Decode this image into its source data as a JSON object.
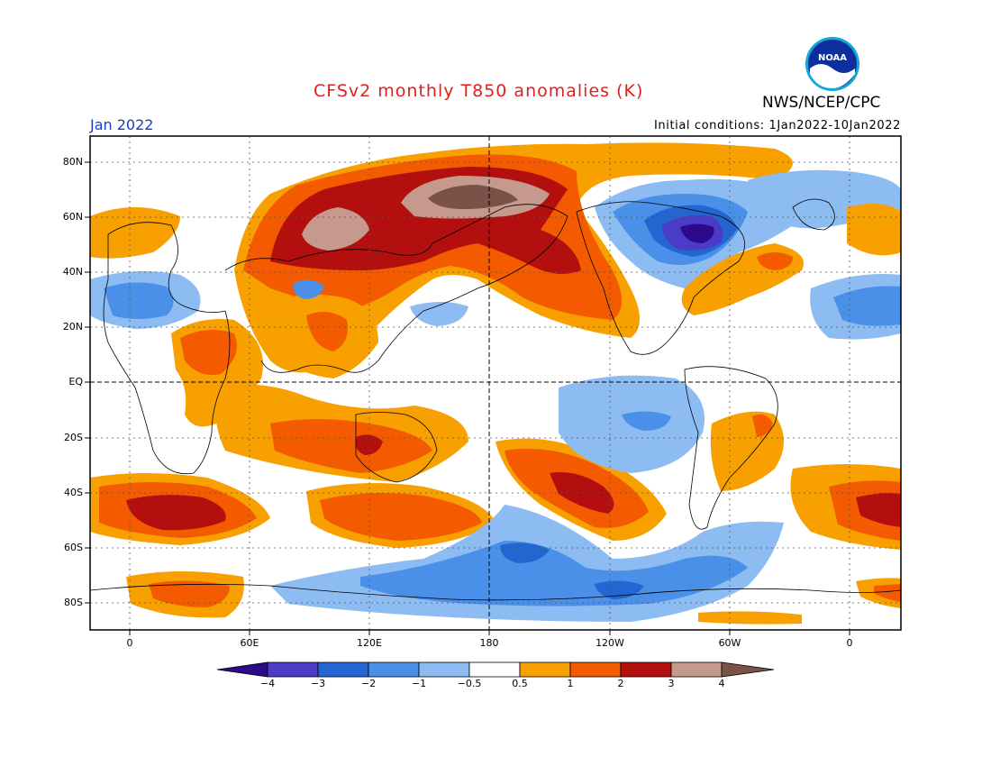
{
  "header": {
    "title": "CFSv2 monthly T850 anomalies (K)",
    "org": "NWS/NCEP/CPC",
    "month": "Jan 2022",
    "initial_conditions": "Initial conditions: 1Jan2022-10Jan2022",
    "logo_text": "NOAA"
  },
  "axes": {
    "lat_labels": [
      "80N",
      "60N",
      "40N",
      "20N",
      "EQ",
      "20S",
      "40S",
      "60S",
      "80S"
    ],
    "lon_labels": [
      "0",
      "60E",
      "120E",
      "180",
      "120W",
      "60W",
      "0"
    ]
  },
  "legend": {
    "labels": [
      "−4",
      "−3",
      "−2",
      "−1",
      "−0.5",
      "0.5",
      "1",
      "2",
      "3",
      "4"
    ],
    "colors": [
      "#2b0a8c",
      "#4b3cc8",
      "#2366d1",
      "#4a90e8",
      "#8cbcf2",
      "#ffffff",
      "#f7a000",
      "#f45a00",
      "#b30f0f",
      "#c59a8c",
      "#7a5247"
    ]
  },
  "colors": {
    "title": "#e01f1f",
    "month": "#1a3cc4"
  }
}
